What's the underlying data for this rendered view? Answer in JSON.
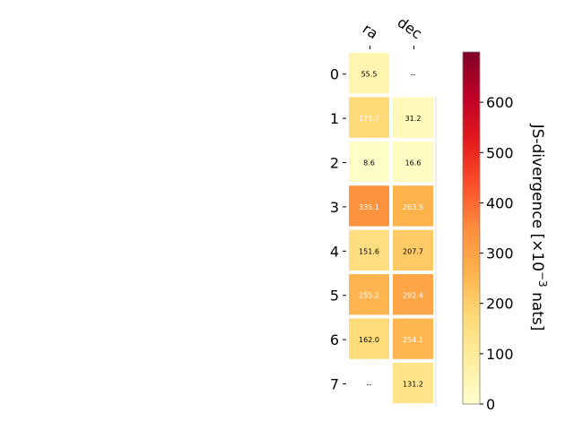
{
  "chart_data": {
    "type": "heatmap",
    "columns": [
      "ra",
      "dec"
    ],
    "rows": [
      "0",
      "1",
      "2",
      "3",
      "4",
      "5",
      "6",
      "7"
    ],
    "values": [
      [
        55.5,
        null
      ],
      [
        171.7,
        31.2
      ],
      [
        8.6,
        16.6
      ],
      [
        335.1,
        263.5
      ],
      [
        151.6,
        207.7
      ],
      [
        255.2,
        292.4
      ],
      [
        162.0,
        254.1
      ],
      [
        null,
        131.2
      ]
    ],
    "cell_labels": [
      [
        "55.5",
        "--"
      ],
      [
        "171.7",
        "31.2"
      ],
      [
        "8.6",
        "16.6"
      ],
      [
        "335.1",
        "263.5"
      ],
      [
        "151.6",
        "207.7"
      ],
      [
        "255.2",
        "292.4"
      ],
      [
        "162.0",
        "254.1"
      ],
      [
        "--",
        "131.2"
      ]
    ],
    "colorbar": {
      "label": "JS-divergence [×10$^{-3}$ nats]",
      "label_text": "JS-divergence [×10",
      "label_sup": "−3",
      "label_tail": " nats]",
      "range": [
        0,
        700
      ],
      "ticks": [
        0,
        100,
        200,
        300,
        400,
        500,
        600
      ],
      "tick_labels": [
        "0",
        "100",
        "200",
        "300",
        "400",
        "500",
        "600"
      ],
      "colormap": "YlOrRd",
      "stops": [
        "#ffffcc",
        "#ffeda0",
        "#fed976",
        "#feb24c",
        "#fd8d3c",
        "#fc4e2a",
        "#e31a1c",
        "#bd0026",
        "#800026"
      ]
    }
  }
}
